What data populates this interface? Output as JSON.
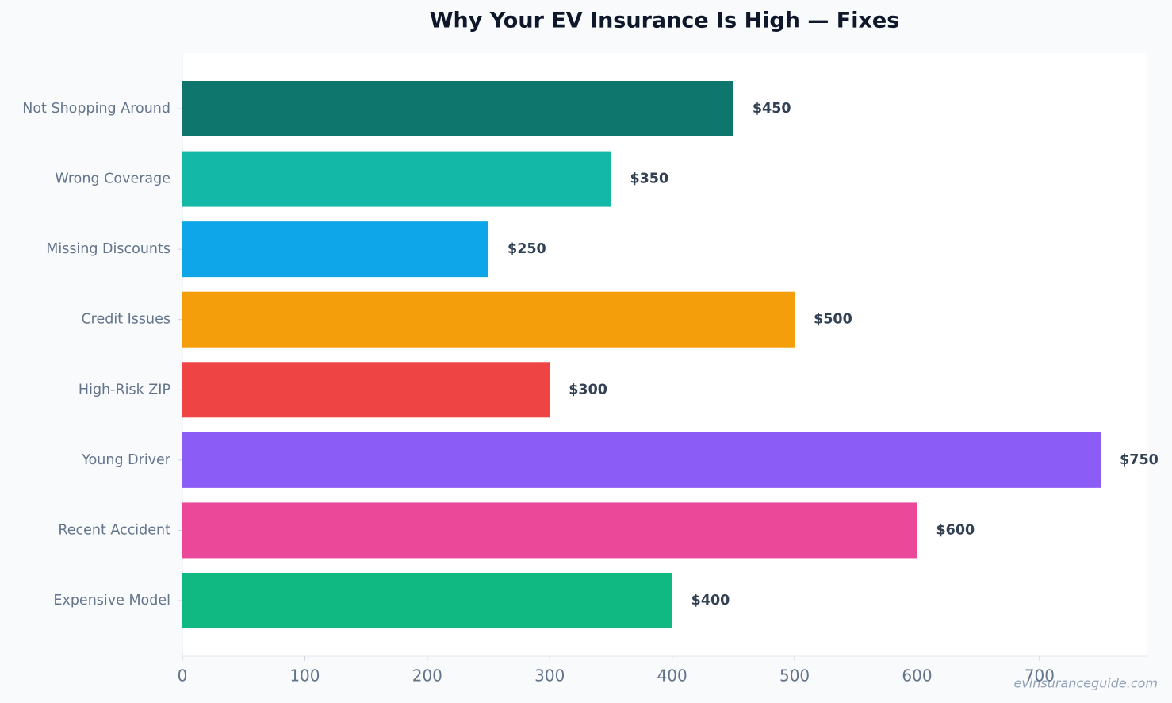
{
  "chart_data": {
    "type": "bar",
    "orientation": "horizontal",
    "title": "Why Your EV Insurance Is High — Fixes",
    "categories": [
      "Not Shopping Around",
      "Wrong Coverage",
      "Missing Discounts",
      "Credit Issues",
      "High-Risk ZIP",
      "Young Driver",
      "Recent Accident",
      "Expensive Model"
    ],
    "values": [
      450,
      350,
      250,
      500,
      300,
      750,
      600,
      400
    ],
    "value_labels": [
      "$450",
      "$350",
      "$250",
      "$500",
      "$300",
      "$750",
      "$600",
      "$400"
    ],
    "colors": [
      "#0f766e",
      "#14b8a6",
      "#0ea5e9",
      "#f59e0b",
      "#ef4444",
      "#8b5cf6",
      "#ec4899",
      "#10b981"
    ],
    "xlim": [
      0,
      787.5
    ],
    "xticks": [
      0,
      100,
      200,
      300,
      400,
      500,
      600,
      700
    ],
    "watermark": "evinsuranceguide.com"
  }
}
